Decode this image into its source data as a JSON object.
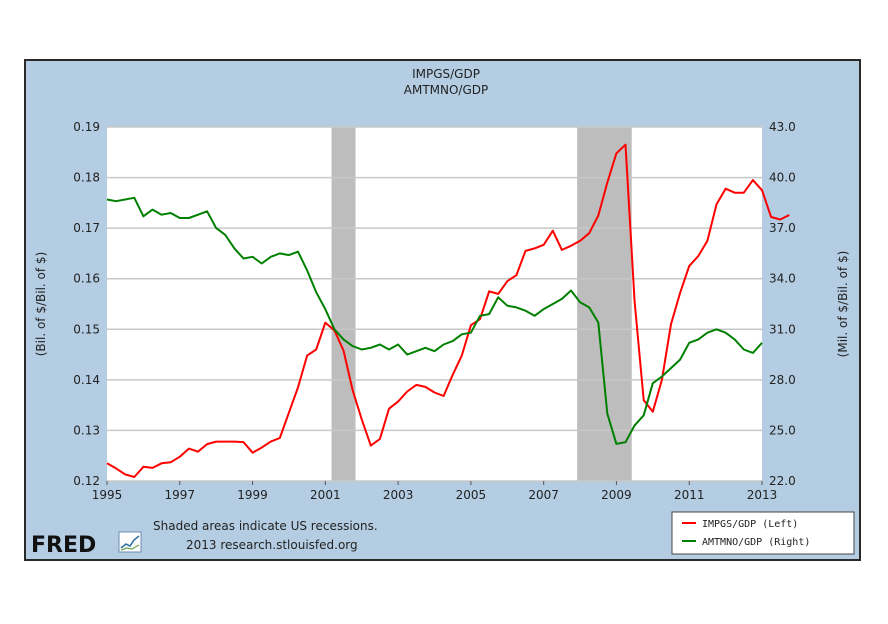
{
  "chart_data": {
    "type": "line",
    "title": "IMPGS/GDP",
    "subtitle": "AMTMNO/GDP",
    "ylabel_left": "(Bil. of $/Bil. of $)",
    "ylabel_right": "(Mil. of $/Bil. of $)",
    "x_range": [
      1995.0,
      2013.0
    ],
    "x_ticks": [
      "1995",
      "1997",
      "1999",
      "2001",
      "2003",
      "2005",
      "2007",
      "2009",
      "2011",
      "2013"
    ],
    "y_left_range": [
      0.12,
      0.19
    ],
    "y_left_ticks": [
      "0.19",
      "0.18",
      "0.17",
      "0.16",
      "0.15",
      "0.14",
      "0.13",
      "0.12"
    ],
    "y_right_range": [
      22.0,
      43.0
    ],
    "y_right_ticks": [
      "43.0",
      "40.0",
      "37.0",
      "34.0",
      "31.0",
      "28.0",
      "25.0",
      "22.0"
    ],
    "grid": true,
    "legend_position": "bottom-right",
    "recessions": [
      [
        2001.17,
        2001.83
      ],
      [
        2007.92,
        2009.42
      ]
    ],
    "note_line1": "Shaded areas indicate US recessions.",
    "note_line2": "2013 research.stlouisfed.org",
    "logo_text": "FRED",
    "series": [
      {
        "name": "IMPGS/GDP (Left)",
        "axis": "left",
        "color": "#ff0000",
        "points": [
          [
            1995.0,
            0.1235
          ],
          [
            1995.25,
            0.1225
          ],
          [
            1995.5,
            0.1213
          ],
          [
            1995.75,
            0.1208
          ],
          [
            1996.0,
            0.1228
          ],
          [
            1996.25,
            0.1226
          ],
          [
            1996.5,
            0.1235
          ],
          [
            1996.75,
            0.1237
          ],
          [
            1997.0,
            0.1248
          ],
          [
            1997.25,
            0.1264
          ],
          [
            1997.5,
            0.1258
          ],
          [
            1997.75,
            0.1273
          ],
          [
            1998.0,
            0.1278
          ],
          [
            1998.25,
            0.1278
          ],
          [
            1998.5,
            0.1278
          ],
          [
            1998.75,
            0.1277
          ],
          [
            1999.0,
            0.1256
          ],
          [
            1999.25,
            0.1266
          ],
          [
            1999.5,
            0.1278
          ],
          [
            1999.75,
            0.1285
          ],
          [
            2000.0,
            0.1335
          ],
          [
            2000.25,
            0.1385
          ],
          [
            2000.5,
            0.1448
          ],
          [
            2000.75,
            0.146
          ],
          [
            2001.0,
            0.1513
          ],
          [
            2001.25,
            0.1498
          ],
          [
            2001.5,
            0.1458
          ],
          [
            2001.75,
            0.138
          ],
          [
            2002.0,
            0.1322
          ],
          [
            2002.25,
            0.127
          ],
          [
            2002.5,
            0.1283
          ],
          [
            2002.75,
            0.1343
          ],
          [
            2003.0,
            0.1357
          ],
          [
            2003.25,
            0.1377
          ],
          [
            2003.5,
            0.139
          ],
          [
            2003.75,
            0.1386
          ],
          [
            2004.0,
            0.1375
          ],
          [
            2004.25,
            0.1368
          ],
          [
            2004.5,
            0.141
          ],
          [
            2004.75,
            0.1448
          ],
          [
            2005.0,
            0.1508
          ],
          [
            2005.25,
            0.152
          ],
          [
            2005.5,
            0.1575
          ],
          [
            2005.75,
            0.157
          ],
          [
            2006.0,
            0.1595
          ],
          [
            2006.25,
            0.1607
          ],
          [
            2006.5,
            0.1655
          ],
          [
            2006.75,
            0.166
          ],
          [
            2007.0,
            0.1667
          ],
          [
            2007.25,
            0.1695
          ],
          [
            2007.5,
            0.1657
          ],
          [
            2007.75,
            0.1665
          ],
          [
            2008.0,
            0.1675
          ],
          [
            2008.25,
            0.169
          ],
          [
            2008.5,
            0.1725
          ],
          [
            2008.75,
            0.179
          ],
          [
            2009.0,
            0.1848
          ],
          [
            2009.25,
            0.1865
          ],
          [
            2009.5,
            0.1555
          ],
          [
            2009.75,
            0.136
          ],
          [
            2010.0,
            0.1337
          ],
          [
            2010.25,
            0.14
          ],
          [
            2010.5,
            0.151
          ],
          [
            2010.75,
            0.1572
          ],
          [
            2011.0,
            0.1625
          ],
          [
            2011.25,
            0.1645
          ],
          [
            2011.5,
            0.1675
          ],
          [
            2011.75,
            0.1747
          ],
          [
            2012.0,
            0.1778
          ],
          [
            2012.25,
            0.177
          ],
          [
            2012.5,
            0.177
          ],
          [
            2012.75,
            0.1795
          ],
          [
            2013.0,
            0.1775
          ],
          [
            2013.25,
            0.1722
          ],
          [
            2013.5,
            0.1717
          ],
          [
            2013.75,
            0.1726
          ]
        ]
      },
      {
        "name": "AMTMNO/GDP (Right)",
        "axis": "right",
        "color": "#008000",
        "points": [
          [
            1995.0,
            38.7
          ],
          [
            1995.25,
            38.6
          ],
          [
            1995.5,
            38.7
          ],
          [
            1995.75,
            38.8
          ],
          [
            1996.0,
            37.7
          ],
          [
            1996.25,
            38.1
          ],
          [
            1996.5,
            37.8
          ],
          [
            1996.75,
            37.9
          ],
          [
            1997.0,
            37.6
          ],
          [
            1997.25,
            37.6
          ],
          [
            1997.5,
            37.8
          ],
          [
            1997.75,
            38.0
          ],
          [
            1998.0,
            37.0
          ],
          [
            1998.25,
            36.6
          ],
          [
            1998.5,
            35.8
          ],
          [
            1998.75,
            35.2
          ],
          [
            1999.0,
            35.3
          ],
          [
            1999.25,
            34.9
          ],
          [
            1999.5,
            35.3
          ],
          [
            1999.75,
            35.5
          ],
          [
            2000.0,
            35.4
          ],
          [
            2000.25,
            35.6
          ],
          [
            2000.5,
            34.5
          ],
          [
            2000.75,
            33.2
          ],
          [
            2001.0,
            32.2
          ],
          [
            2001.25,
            31.0
          ],
          [
            2001.5,
            30.4
          ],
          [
            2001.75,
            30.0
          ],
          [
            2002.0,
            29.8
          ],
          [
            2002.25,
            29.9
          ],
          [
            2002.5,
            30.1
          ],
          [
            2002.75,
            29.8
          ],
          [
            2003.0,
            30.1
          ],
          [
            2003.25,
            29.5
          ],
          [
            2003.5,
            29.7
          ],
          [
            2003.75,
            29.9
          ],
          [
            2004.0,
            29.7
          ],
          [
            2004.25,
            30.1
          ],
          [
            2004.5,
            30.3
          ],
          [
            2004.75,
            30.7
          ],
          [
            2005.0,
            30.8
          ],
          [
            2005.25,
            31.8
          ],
          [
            2005.5,
            31.9
          ],
          [
            2005.75,
            32.9
          ],
          [
            2006.0,
            32.4
          ],
          [
            2006.25,
            32.3
          ],
          [
            2006.5,
            32.1
          ],
          [
            2006.75,
            31.8
          ],
          [
            2007.0,
            32.2
          ],
          [
            2007.25,
            32.5
          ],
          [
            2007.5,
            32.8
          ],
          [
            2007.75,
            33.3
          ],
          [
            2008.0,
            32.6
          ],
          [
            2008.25,
            32.3
          ],
          [
            2008.5,
            31.4
          ],
          [
            2008.75,
            26.0
          ],
          [
            2009.0,
            24.2
          ],
          [
            2009.25,
            24.3
          ],
          [
            2009.5,
            25.3
          ],
          [
            2009.75,
            25.9
          ],
          [
            2010.0,
            27.8
          ],
          [
            2010.25,
            28.2
          ],
          [
            2010.5,
            28.7
          ],
          [
            2010.75,
            29.2
          ],
          [
            2011.0,
            30.2
          ],
          [
            2011.25,
            30.4
          ],
          [
            2011.5,
            30.8
          ],
          [
            2011.75,
            31.0
          ],
          [
            2012.0,
            30.8
          ],
          [
            2012.25,
            30.4
          ],
          [
            2012.5,
            29.8
          ],
          [
            2012.75,
            29.6
          ],
          [
            2013.0,
            30.2
          ]
        ]
      }
    ]
  }
}
